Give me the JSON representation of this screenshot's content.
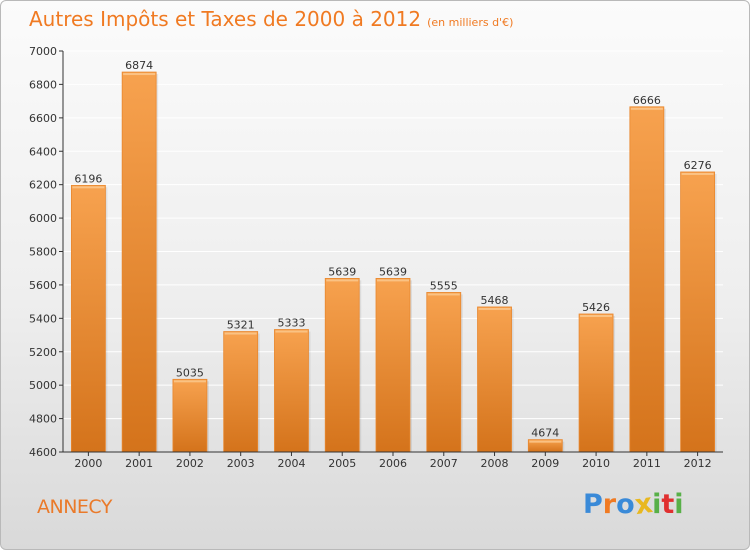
{
  "page": {
    "title": "Autres Impôts et Taxes de 2000 à 2012",
    "title_unit": "(en milliers d'€)",
    "location": "ANNECY",
    "brand": "Proxiti"
  },
  "colors": {
    "title": "#f07a22",
    "bar_top": "#f7a24f",
    "bar_bottom": "#d4731b",
    "axis": "#333333",
    "grid": "#ffffff",
    "brand_letters": [
      "#3a8ad8",
      "#f07a22",
      "#3a8ad8",
      "#e8b820",
      "#58b048",
      "#e03030",
      "#58b048"
    ]
  },
  "chart_data": {
    "type": "bar",
    "title": "Autres Impôts et Taxes de 2000 à 2012",
    "subtitle": "(en milliers d'€)",
    "xlabel": "",
    "ylabel": "",
    "categories": [
      "2000",
      "2001",
      "2002",
      "2003",
      "2004",
      "2005",
      "2006",
      "2007",
      "2008",
      "2009",
      "2010",
      "2011",
      "2012"
    ],
    "values": [
      6196,
      6874,
      5035,
      5321,
      5333,
      5639,
      5639,
      5555,
      5468,
      4674,
      5426,
      6666,
      6276
    ],
    "ylim": [
      4600,
      7000
    ],
    "yticks": [
      4600,
      4800,
      5000,
      5200,
      5400,
      5600,
      5800,
      6000,
      6200,
      6400,
      6600,
      6800,
      7000
    ],
    "grid": true,
    "data_labels": true
  }
}
